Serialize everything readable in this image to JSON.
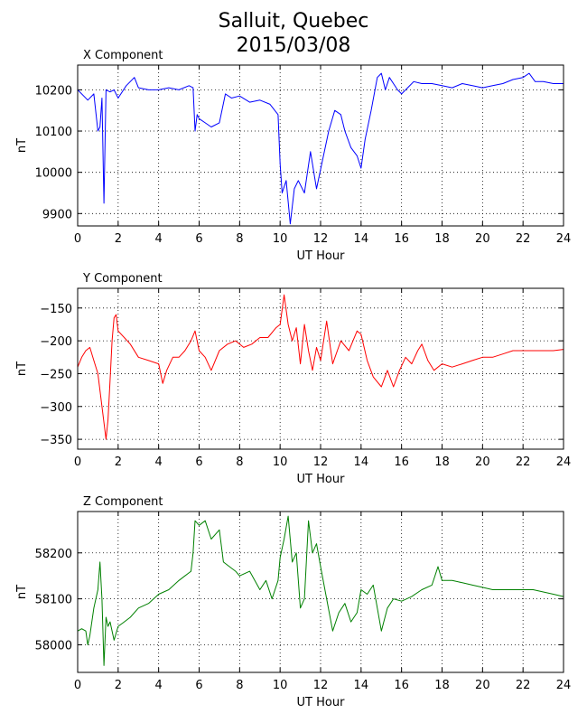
{
  "title_line1": "Salluit, Quebec",
  "title_line2": "2015/03/08",
  "chart_data": [
    {
      "type": "line",
      "title": "X Component",
      "xlabel": "UT Hour",
      "ylabel": "nT",
      "color": "#0000ff",
      "xlim": [
        0,
        24
      ],
      "ylim": [
        9870,
        10260
      ],
      "xticks": [
        0,
        2,
        4,
        6,
        8,
        10,
        12,
        14,
        16,
        18,
        20,
        22,
        24
      ],
      "yticks": [
        9900,
        10000,
        10100,
        10200
      ],
      "grid": true,
      "x": [
        0,
        0.3,
        0.5,
        0.8,
        1.0,
        1.1,
        1.2,
        1.3,
        1.4,
        1.6,
        1.8,
        2.0,
        2.4,
        2.8,
        3.0,
        3.5,
        4.0,
        4.5,
        5.0,
        5.5,
        5.7,
        5.8,
        5.9,
        6.0,
        6.3,
        6.6,
        7.0,
        7.3,
        7.6,
        8.0,
        8.5,
        9.0,
        9.5,
        9.9,
        10.0,
        10.1,
        10.3,
        10.5,
        10.7,
        10.9,
        11.2,
        11.5,
        11.8,
        12.1,
        12.4,
        12.7,
        13.0,
        13.2,
        13.5,
        13.8,
        14.0,
        14.2,
        14.5,
        14.8,
        15.0,
        15.2,
        15.4,
        15.6,
        15.8,
        16.0,
        16.3,
        16.6,
        17.0,
        17.5,
        18.0,
        18.5,
        19.0,
        19.5,
        20.0,
        20.5,
        21.0,
        21.5,
        22.0,
        22.3,
        22.6,
        23.0,
        23.5,
        24.0
      ],
      "y": [
        10200,
        10185,
        10175,
        10190,
        10100,
        10110,
        10180,
        9925,
        10200,
        10195,
        10200,
        10180,
        10210,
        10230,
        10205,
        10200,
        10200,
        10205,
        10200,
        10210,
        10205,
        10100,
        10140,
        10130,
        10120,
        10110,
        10120,
        10190,
        10180,
        10185,
        10170,
        10175,
        10165,
        10140,
        10020,
        9950,
        9980,
        9875,
        9960,
        9980,
        9950,
        10050,
        9960,
        10030,
        10100,
        10150,
        10140,
        10100,
        10060,
        10040,
        10010,
        10080,
        10150,
        10230,
        10240,
        10200,
        10230,
        10215,
        10200,
        10190,
        10205,
        10220,
        10215,
        10215,
        10210,
        10205,
        10215,
        10210,
        10205,
        10210,
        10215,
        10225,
        10230,
        10240,
        10220,
        10220,
        10215,
        10215
      ]
    },
    {
      "type": "line",
      "title": "Y Component",
      "xlabel": "UT Hour",
      "ylabel": "nT",
      "color": "#ff0000",
      "xlim": [
        0,
        24
      ],
      "ylim": [
        -365,
        -120
      ],
      "xticks": [
        0,
        2,
        4,
        6,
        8,
        10,
        12,
        14,
        16,
        18,
        20,
        22,
        24
      ],
      "yticks": [
        -150,
        -200,
        -250,
        -300,
        -350
      ],
      "grid": true,
      "x": [
        0,
        0.2,
        0.4,
        0.6,
        0.8,
        1.0,
        1.2,
        1.4,
        1.5,
        1.6,
        1.7,
        1.8,
        1.9,
        2.0,
        2.3,
        2.6,
        3.0,
        3.5,
        4.0,
        4.2,
        4.4,
        4.7,
        5.0,
        5.3,
        5.6,
        5.8,
        6.0,
        6.3,
        6.6,
        7.0,
        7.4,
        7.8,
        8.2,
        8.6,
        9.0,
        9.4,
        9.8,
        10.0,
        10.2,
        10.4,
        10.6,
        10.8,
        11.0,
        11.2,
        11.4,
        11.6,
        11.8,
        12.0,
        12.3,
        12.6,
        13.0,
        13.4,
        13.8,
        14.0,
        14.3,
        14.6,
        15.0,
        15.3,
        15.6,
        15.9,
        16.2,
        16.5,
        16.8,
        17.0,
        17.3,
        17.6,
        18.0,
        18.5,
        19.0,
        19.5,
        20.0,
        20.5,
        21.0,
        21.5,
        22.0,
        22.5,
        23.0,
        23.5,
        24.0
      ],
      "y": [
        -240,
        -225,
        -215,
        -210,
        -230,
        -250,
        -300,
        -350,
        -320,
        -260,
        -200,
        -165,
        -160,
        -185,
        -195,
        -205,
        -225,
        -230,
        -235,
        -265,
        -245,
        -225,
        -225,
        -215,
        -200,
        -185,
        -215,
        -225,
        -245,
        -215,
        -205,
        -200,
        -210,
        -205,
        -195,
        -195,
        -180,
        -175,
        -130,
        -175,
        -200,
        -180,
        -235,
        -175,
        -215,
        -245,
        -210,
        -230,
        -170,
        -235,
        -200,
        -215,
        -185,
        -190,
        -230,
        -255,
        -270,
        -245,
        -270,
        -245,
        -225,
        -235,
        -215,
        -205,
        -230,
        -245,
        -235,
        -240,
        -235,
        -230,
        -225,
        -225,
        -220,
        -215,
        -215,
        -215,
        -215,
        -215,
        -213
      ]
    },
    {
      "type": "line",
      "title": "Z Component",
      "xlabel": "UT Hour",
      "ylabel": "nT",
      "color": "#008000",
      "xlim": [
        0,
        24
      ],
      "ylim": [
        57940,
        58290
      ],
      "xticks": [
        0,
        2,
        4,
        6,
        8,
        10,
        12,
        14,
        16,
        18,
        20,
        22,
        24
      ],
      "yticks": [
        58000,
        58100,
        58200
      ],
      "grid": true,
      "x": [
        0,
        0.2,
        0.4,
        0.5,
        0.6,
        0.8,
        1.0,
        1.1,
        1.2,
        1.3,
        1.4,
        1.5,
        1.6,
        1.8,
        2.0,
        2.3,
        2.6,
        3.0,
        3.5,
        4.0,
        4.5,
        5.0,
        5.3,
        5.6,
        5.7,
        5.8,
        6.0,
        6.3,
        6.6,
        7.0,
        7.2,
        7.5,
        7.8,
        8.0,
        8.5,
        9.0,
        9.3,
        9.6,
        9.9,
        10.0,
        10.2,
        10.4,
        10.6,
        10.8,
        11.0,
        11.2,
        11.4,
        11.6,
        11.8,
        12.0,
        12.3,
        12.6,
        12.9,
        13.2,
        13.5,
        13.8,
        14.0,
        14.3,
        14.6,
        15.0,
        15.3,
        15.6,
        16.0,
        16.5,
        17.0,
        17.5,
        17.8,
        18.0,
        18.5,
        19.0,
        19.5,
        20.0,
        20.5,
        21.0,
        21.5,
        22.0,
        22.5,
        23.0,
        23.5,
        24.0
      ],
      "y": [
        58030,
        58035,
        58030,
        58000,
        58020,
        58080,
        58120,
        58180,
        58100,
        57955,
        58060,
        58040,
        58050,
        58010,
        58040,
        58050,
        58060,
        58080,
        58090,
        58110,
        58120,
        58140,
        58150,
        58160,
        58200,
        58270,
        58260,
        58270,
        58230,
        58250,
        58180,
        58170,
        58160,
        58150,
        58160,
        58120,
        58140,
        58100,
        58140,
        58190,
        58230,
        58280,
        58180,
        58200,
        58080,
        58100,
        58270,
        58200,
        58220,
        58170,
        58100,
        58030,
        58070,
        58090,
        58050,
        58070,
        58120,
        58110,
        58130,
        58030,
        58080,
        58100,
        58095,
        58105,
        58120,
        58130,
        58170,
        58140,
        58140,
        58135,
        58130,
        58125,
        58120,
        58120,
        58120,
        58120,
        58120,
        58115,
        58110,
        58105
      ]
    }
  ]
}
